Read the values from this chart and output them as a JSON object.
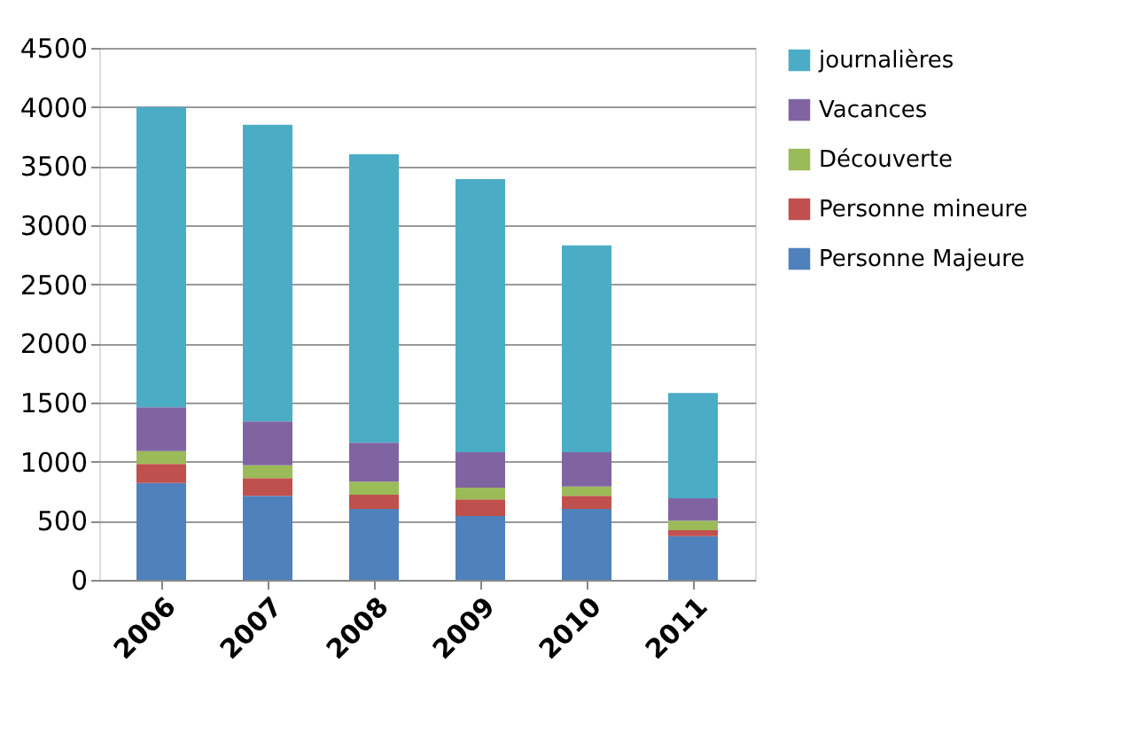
{
  "chart_data": {
    "type": "bar",
    "stacked": true,
    "categories": [
      "2006",
      "2007",
      "2008",
      "2009",
      "2010",
      "2011"
    ],
    "series": [
      {
        "name": "Personne Majeure",
        "color": "#4f81bd",
        "values": [
          820,
          710,
          600,
          540,
          600,
          370
        ]
      },
      {
        "name": "Personne mineure",
        "color": "#c0504d",
        "values": [
          160,
          150,
          120,
          140,
          110,
          50
        ]
      },
      {
        "name": "Découverte",
        "color": "#9bbb59",
        "values": [
          110,
          110,
          110,
          100,
          80,
          80
        ]
      },
      {
        "name": "Vacances",
        "color": "#8064a2",
        "values": [
          370,
          370,
          330,
          300,
          290,
          190
        ]
      },
      {
        "name": "journalières",
        "color": "#4bacc6",
        "values": [
          2540,
          2510,
          2440,
          2310,
          1750,
          890
        ]
      }
    ],
    "ylim": [
      0,
      4500
    ],
    "yticks": [
      0,
      500,
      1000,
      1500,
      2000,
      2500,
      3000,
      3500,
      4000,
      4500
    ],
    "grid": "y",
    "legend": "right"
  }
}
